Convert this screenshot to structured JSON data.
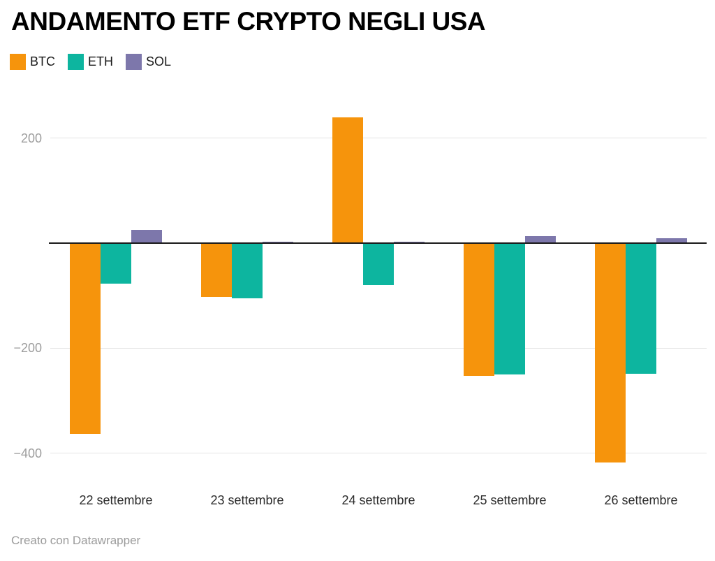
{
  "title": "ANDAMENTO ETF CRYPTO NEGLI USA",
  "footer": "Creato con Datawrapper",
  "chart_data": {
    "type": "bar",
    "title": "ANDAMENTO ETF CRYPTO NEGLI USA",
    "xlabel": "",
    "ylabel": "",
    "categories": [
      "22 settembre",
      "23 settembre",
      "24 settembre",
      "25 settembre",
      "26 settembre"
    ],
    "series": [
      {
        "name": "BTC",
        "color": "#f6940c",
        "values": [
          -363,
          -103,
          241,
          -253,
          -418
        ]
      },
      {
        "name": "ETH",
        "color": "#0db59f",
        "values": [
          -77,
          -105,
          -80,
          -250,
          -249
        ]
      },
      {
        "name": "SOL",
        "color": "#7d77ab",
        "values": [
          27,
          2,
          3,
          15,
          10
        ]
      }
    ],
    "yticks": [
      {
        "value": 200,
        "label": "200"
      },
      {
        "value": -200,
        "label": "−200"
      },
      {
        "value": -400,
        "label": "−400"
      }
    ],
    "ylim": [
      -450,
      250
    ],
    "grid": true,
    "legend_position": "top-left",
    "zero_axis_color": "#1a1a1a",
    "gridline_color": "#e3e3e3"
  }
}
